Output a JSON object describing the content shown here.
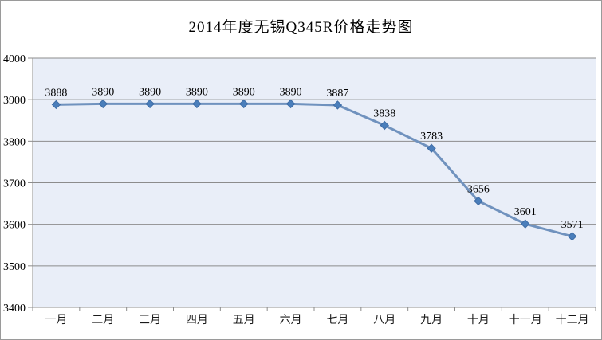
{
  "chart_data": {
    "type": "line",
    "title": "2014年度无锡Q345R价格走势图",
    "categories": [
      "一月",
      "二月",
      "三月",
      "四月",
      "五月",
      "六月",
      "七月",
      "八月",
      "九月",
      "十月",
      "十一月",
      "十二月"
    ],
    "values": [
      3888,
      3890,
      3890,
      3890,
      3890,
      3890,
      3887,
      3838,
      3783,
      3656,
      3601,
      3571
    ],
    "yticks": [
      3400,
      3500,
      3600,
      3700,
      3800,
      3900,
      4000
    ],
    "ylim": [
      3400,
      4000
    ],
    "grid": "horizontal",
    "legend": "none",
    "marker": "diamond",
    "colors": {
      "line": "#7092be",
      "marker_fill": "#4a7ebb",
      "marker_edge": "#3e6ca5",
      "plot_bg": "#e9eef8",
      "grid": "#8c8c8c",
      "axis": "#8c8c8c",
      "text": "#000000",
      "frame_border": "#9a9a9a"
    }
  }
}
